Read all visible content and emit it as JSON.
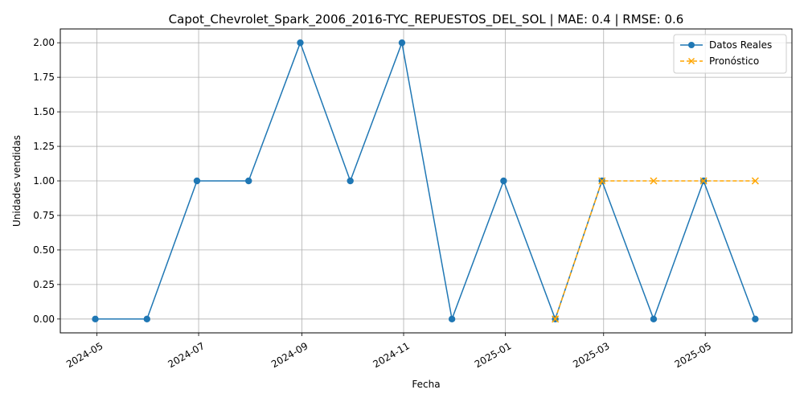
{
  "chart_data": {
    "type": "line",
    "title": "Capot_Chevrolet_Spark_2006_2016-TYC_REPUESTOS_DEL_SOL | MAE: 0.4 | RMSE: 0.6",
    "xlabel": "Fecha",
    "ylabel": "Unidades vendidas",
    "ylim": [
      -0.1,
      2.1
    ],
    "xlim": [
      "2024-04-09",
      "2025-06-22"
    ],
    "grid": true,
    "legend_position": "top-right",
    "x_ticks": [
      "2024-05",
      "2024-07",
      "2024-09",
      "2024-11",
      "2025-01",
      "2025-03",
      "2025-05"
    ],
    "y_ticks": [
      "0.00",
      "0.25",
      "0.50",
      "0.75",
      "1.00",
      "1.25",
      "1.50",
      "1.75",
      "2.00"
    ],
    "series": [
      {
        "name": "Datos Reales",
        "color": "#1f77b4",
        "marker": "circle",
        "line": "solid",
        "x": [
          "2024-04-30",
          "2024-05-31",
          "2024-06-30",
          "2024-07-31",
          "2024-08-31",
          "2024-09-30",
          "2024-10-31",
          "2024-11-30",
          "2024-12-31",
          "2025-01-31",
          "2025-02-28",
          "2025-03-31",
          "2025-04-30",
          "2025-05-31"
        ],
        "y": [
          0,
          0,
          1,
          1,
          2,
          1,
          2,
          0,
          1,
          0,
          1,
          0,
          1,
          0
        ]
      },
      {
        "name": "Pronóstico",
        "color": "#ffa500",
        "marker": "x",
        "line": "dashed",
        "x": [
          "2025-01-31",
          "2025-02-28",
          "2025-03-31",
          "2025-04-30",
          "2025-05-31"
        ],
        "y": [
          0,
          1,
          1,
          1,
          1
        ]
      }
    ]
  }
}
